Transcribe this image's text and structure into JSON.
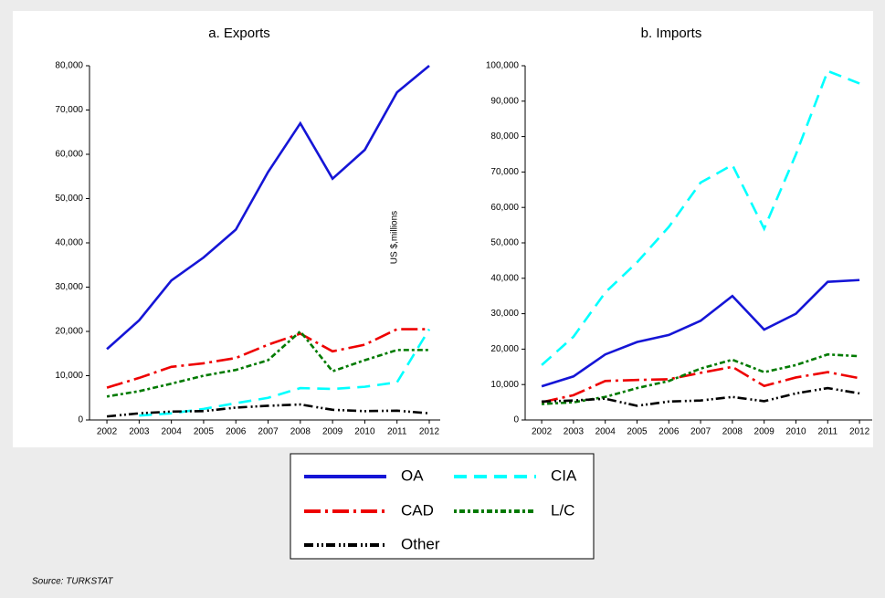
{
  "chart_data": [
    {
      "type": "line",
      "title": "a. Exports",
      "y_label": "US $,millions",
      "x": [
        2002,
        2003,
        2004,
        2005,
        2006,
        2007,
        2008,
        2009,
        2010,
        2011,
        2012
      ],
      "xlim": [
        2001.46,
        2012.34
      ],
      "xticks": [
        2002,
        2003,
        2004,
        2005,
        2006,
        2007,
        2008,
        2009,
        2010,
        2011,
        2012
      ],
      "ylim": [
        0,
        80000
      ],
      "yticks": [
        0,
        {
          "value": 10000,
          "label": "10,000"
        },
        {
          "value": 20000,
          "label": "20,000"
        },
        {
          "value": 30000,
          "label": "30,000"
        },
        {
          "value": 40000,
          "label": "40,000"
        },
        {
          "value": 50000,
          "label": "50,000"
        },
        {
          "value": 60000,
          "label": "60,000"
        },
        {
          "value": 70000,
          "label": "70,000"
        },
        {
          "value": 80000,
          "label": "80,000"
        }
      ],
      "series": [
        {
          "name": "OA",
          "color": "#1515d6",
          "values": [
            16000,
            22500,
            31500,
            36700,
            43000,
            56000,
            67000,
            54500,
            61000,
            74000,
            80000
          ]
        },
        {
          "name": "CIA",
          "color": "#00ffff",
          "values": [
            null,
            1000,
            1500,
            2500,
            3800,
            5000,
            7200,
            7000,
            7500,
            8500,
            20500
          ]
        },
        {
          "name": "CAD",
          "color": "#ee0000",
          "values": [
            7300,
            9500,
            12000,
            12800,
            14000,
            17000,
            19500,
            15500,
            17000,
            20500,
            20500
          ]
        },
        {
          "name": "L/C",
          "color": "#007a00",
          "values": [
            5300,
            6500,
            8200,
            10000,
            11300,
            13500,
            20000,
            11000,
            13500,
            15800,
            15800
          ]
        },
        {
          "name": "Other",
          "color": "#000000",
          "values": [
            800,
            1500,
            1900,
            2000,
            2800,
            3200,
            3500,
            2300,
            2000,
            2100,
            1500
          ]
        }
      ]
    },
    {
      "type": "line",
      "title": "b. Imports",
      "x": [
        2002,
        2003,
        2004,
        2005,
        2006,
        2007,
        2008,
        2009,
        2010,
        2011,
        2012
      ],
      "xlim": [
        2001.48,
        2012.4
      ],
      "xticks": [
        2002,
        2003,
        2004,
        2005,
        2006,
        2007,
        2008,
        2009,
        2010,
        2011,
        2012
      ],
      "ylim": [
        0,
        100000
      ],
      "yticks": [
        0,
        {
          "value": 10000,
          "label": "10,000"
        },
        {
          "value": 20000,
          "label": "20,000"
        },
        {
          "value": 30000,
          "label": "30,000"
        },
        {
          "value": 40000,
          "label": "40,000"
        },
        {
          "value": 50000,
          "label": "50,000"
        },
        {
          "value": 60000,
          "label": "60,000"
        },
        {
          "value": 70000,
          "label": "70,000"
        },
        {
          "value": 80000,
          "label": "80,000"
        },
        {
          "value": 90000,
          "label": "90,000"
        },
        {
          "value": 100000,
          "label": "100,000"
        }
      ],
      "series": [
        {
          "name": "OA",
          "color": "#1515d6",
          "values": [
            9500,
            12300,
            18500,
            22000,
            24000,
            28000,
            35000,
            25500,
            30000,
            39000,
            39500
          ]
        },
        {
          "name": "CIA",
          "color": "#00ffff",
          "values": [
            15500,
            23500,
            36000,
            44500,
            54500,
            67000,
            72000,
            54000,
            75000,
            98500,
            95000
          ]
        },
        {
          "name": "CAD",
          "color": "#ee0000",
          "values": [
            5000,
            7000,
            11000,
            11300,
            11500,
            13300,
            15000,
            9600,
            12000,
            13500,
            11800
          ]
        },
        {
          "name": "L/C",
          "color": "#007a00",
          "values": [
            4500,
            5000,
            6500,
            9000,
            11000,
            14500,
            17000,
            13500,
            15500,
            18500,
            18000
          ]
        },
        {
          "name": "Other",
          "color": "#000000",
          "values": [
            5200,
            5500,
            6000,
            4000,
            5200,
            5500,
            6500,
            5300,
            7500,
            9000,
            7500
          ]
        }
      ]
    }
  ],
  "source": "Source: TURKSTAT"
}
